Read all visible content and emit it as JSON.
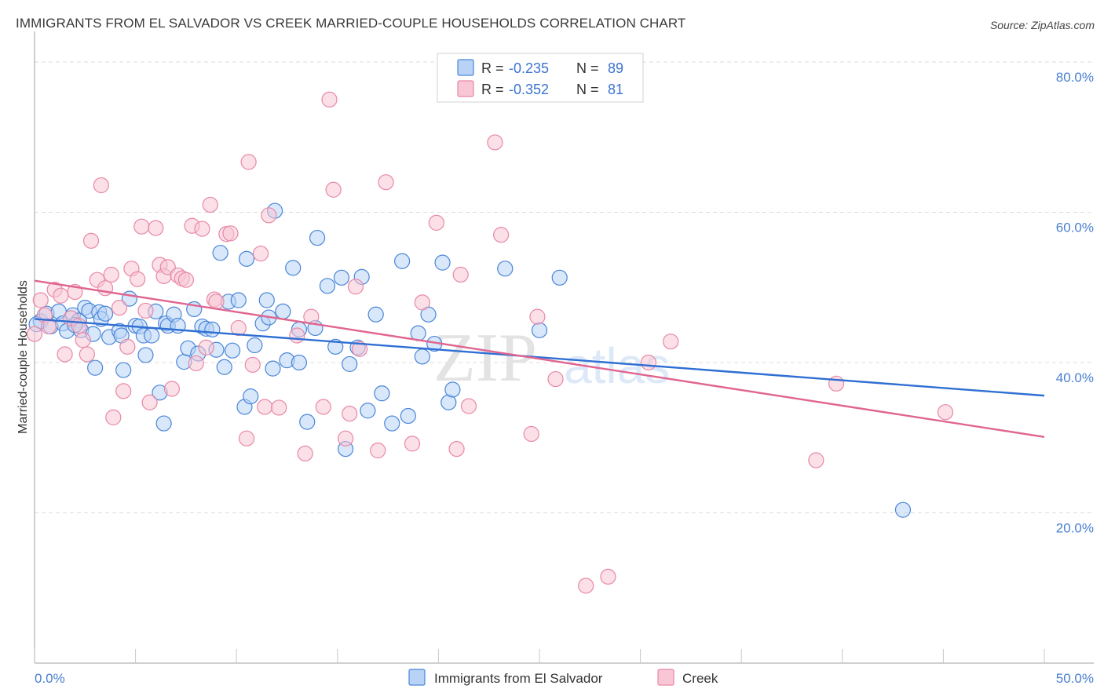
{
  "title": "IMMIGRANTS FROM EL SALVADOR VS CREEK MARRIED-COUPLE HOUSEHOLDS CORRELATION CHART",
  "source": "Source: ZipAtlas.com",
  "watermark": {
    "zip": "ZIP",
    "atlas": "atlas"
  },
  "colors": {
    "blue_fill": "#b8d3f5",
    "blue_stroke": "#4a86d8",
    "blue_line": "#2f6fd3",
    "pink_fill": "#f8c6d5",
    "pink_stroke": "#e888a6",
    "pink_line": "#e06590",
    "axis_label": "#4a7fd0",
    "grid": "#dcdcdc"
  },
  "legend": {
    "rows": [
      {
        "r_label": "R =",
        "r_value": "-0.235",
        "n_label": "N =",
        "n_value": "89"
      },
      {
        "r_label": "R =",
        "r_value": "-0.352",
        "n_label": "N =",
        "n_value": "81"
      }
    ]
  },
  "chart_data": {
    "type": "scatter",
    "title": "IMMIGRANTS FROM EL SALVADOR VS CREEK MARRIED-COUPLE HOUSEHOLDS CORRELATION CHART",
    "xlabel": "",
    "ylabel": "Married-couple Households",
    "xlim": [
      0,
      50
    ],
    "ylim": [
      0,
      80
    ],
    "x_tick_labels": [
      "0.0%",
      "50.0%"
    ],
    "y_ticks": [
      20,
      40,
      60,
      80
    ],
    "y_tick_labels": [
      "20.0%",
      "40.0%",
      "60.0%",
      "80.0%"
    ],
    "grid": true,
    "legend_position": "top-center",
    "series": [
      {
        "name": "Immigrants from El Salvador",
        "R": -0.235,
        "N": 89,
        "trend": {
          "x": [
            0,
            50
          ],
          "y": [
            45.8,
            35.6
          ]
        },
        "points": [
          [
            0.3,
            45.5
          ],
          [
            0.6,
            46.5
          ],
          [
            0.8,
            44.8
          ],
          [
            1.2,
            46.8
          ],
          [
            1.4,
            45.2
          ],
          [
            1.6,
            44.2
          ],
          [
            1.9,
            46.3
          ],
          [
            2.2,
            45.6
          ],
          [
            2.3,
            44.3
          ],
          [
            2.5,
            47.3
          ],
          [
            2.7,
            46.9
          ],
          [
            2.9,
            43.8
          ],
          [
            3.0,
            39.3
          ],
          [
            3.2,
            46.7
          ],
          [
            3.3,
            45.8
          ],
          [
            3.5,
            46.5
          ],
          [
            3.7,
            43.4
          ],
          [
            4.2,
            44.2
          ],
          [
            4.3,
            43.6
          ],
          [
            4.4,
            39.0
          ],
          [
            4.7,
            48.5
          ],
          [
            5.0,
            44.9
          ],
          [
            5.2,
            44.8
          ],
          [
            5.4,
            43.6
          ],
          [
            5.5,
            41.0
          ],
          [
            5.8,
            43.6
          ],
          [
            6.0,
            46.8
          ],
          [
            6.2,
            36.0
          ],
          [
            6.4,
            31.9
          ],
          [
            6.5,
            45.2
          ],
          [
            6.6,
            44.9
          ],
          [
            6.9,
            46.4
          ],
          [
            7.1,
            44.9
          ],
          [
            7.4,
            40.1
          ],
          [
            7.6,
            41.9
          ],
          [
            7.9,
            47.1
          ],
          [
            8.1,
            41.2
          ],
          [
            8.3,
            44.8
          ],
          [
            8.5,
            44.5
          ],
          [
            8.8,
            44.4
          ],
          [
            9.0,
            41.7
          ],
          [
            9.2,
            54.6
          ],
          [
            9.4,
            39.4
          ],
          [
            9.6,
            48.1
          ],
          [
            9.8,
            41.6
          ],
          [
            10.1,
            48.3
          ],
          [
            10.4,
            34.1
          ],
          [
            10.5,
            53.8
          ],
          [
            10.7,
            35.5
          ],
          [
            10.9,
            42.3
          ],
          [
            11.3,
            45.2
          ],
          [
            11.5,
            48.3
          ],
          [
            11.6,
            46.0
          ],
          [
            11.9,
            60.2
          ],
          [
            11.8,
            39.2
          ],
          [
            12.3,
            46.8
          ],
          [
            12.5,
            40.3
          ],
          [
            12.8,
            52.6
          ],
          [
            13.1,
            44.4
          ],
          [
            13.1,
            40.0
          ],
          [
            13.5,
            32.1
          ],
          [
            13.9,
            44.6
          ],
          [
            14.0,
            56.6
          ],
          [
            14.5,
            50.2
          ],
          [
            14.9,
            42.1
          ],
          [
            15.2,
            51.3
          ],
          [
            15.4,
            28.5
          ],
          [
            15.6,
            39.8
          ],
          [
            16.0,
            42.0
          ],
          [
            16.2,
            51.4
          ],
          [
            16.5,
            33.6
          ],
          [
            16.9,
            46.4
          ],
          [
            17.2,
            35.9
          ],
          [
            17.7,
            31.9
          ],
          [
            18.2,
            53.5
          ],
          [
            18.5,
            32.9
          ],
          [
            19.0,
            43.9
          ],
          [
            19.2,
            40.8
          ],
          [
            19.5,
            46.4
          ],
          [
            19.8,
            42.5
          ],
          [
            20.2,
            53.3
          ],
          [
            20.5,
            34.7
          ],
          [
            20.7,
            36.4
          ],
          [
            23.3,
            52.5
          ],
          [
            25.0,
            44.3
          ],
          [
            26.0,
            51.3
          ],
          [
            43.0,
            20.4
          ],
          [
            0.1,
            45.1
          ],
          [
            2.0,
            45.0
          ]
        ]
      },
      {
        "name": "Creek",
        "R": -0.352,
        "N": 81,
        "trend": {
          "x": [
            0,
            50
          ],
          "y": [
            50.9,
            30.1
          ]
        },
        "points": [
          [
            0.0,
            43.8
          ],
          [
            0.3,
            48.3
          ],
          [
            0.5,
            46.3
          ],
          [
            0.7,
            44.8
          ],
          [
            1.0,
            49.7
          ],
          [
            1.3,
            48.9
          ],
          [
            1.5,
            41.1
          ],
          [
            1.8,
            45.9
          ],
          [
            2.0,
            49.4
          ],
          [
            2.2,
            44.9
          ],
          [
            2.4,
            43.0
          ],
          [
            2.6,
            41.1
          ],
          [
            2.8,
            56.2
          ],
          [
            3.1,
            51.0
          ],
          [
            3.3,
            63.6
          ],
          [
            3.5,
            49.9
          ],
          [
            3.8,
            51.7
          ],
          [
            3.9,
            32.7
          ],
          [
            4.2,
            47.3
          ],
          [
            4.4,
            36.2
          ],
          [
            4.6,
            42.1
          ],
          [
            4.8,
            52.5
          ],
          [
            5.1,
            51.1
          ],
          [
            5.3,
            58.1
          ],
          [
            5.5,
            46.9
          ],
          [
            5.7,
            34.7
          ],
          [
            6.0,
            57.9
          ],
          [
            6.2,
            53.0
          ],
          [
            6.4,
            51.5
          ],
          [
            6.6,
            52.7
          ],
          [
            6.8,
            36.5
          ],
          [
            7.1,
            51.6
          ],
          [
            7.3,
            51.2
          ],
          [
            7.5,
            51.0
          ],
          [
            7.8,
            58.2
          ],
          [
            8.0,
            39.9
          ],
          [
            8.3,
            57.8
          ],
          [
            8.5,
            42.0
          ],
          [
            8.7,
            61.0
          ],
          [
            8.9,
            48.4
          ],
          [
            9.0,
            48.1
          ],
          [
            9.5,
            57.1
          ],
          [
            9.7,
            57.2
          ],
          [
            10.1,
            44.6
          ],
          [
            10.5,
            29.9
          ],
          [
            10.6,
            66.7
          ],
          [
            10.8,
            39.7
          ],
          [
            11.2,
            54.5
          ],
          [
            11.4,
            34.1
          ],
          [
            11.6,
            59.6
          ],
          [
            12.1,
            34.0
          ],
          [
            13.0,
            43.6
          ],
          [
            13.4,
            27.9
          ],
          [
            13.7,
            46.1
          ],
          [
            14.3,
            34.1
          ],
          [
            14.6,
            75.0
          ],
          [
            14.8,
            63.0
          ],
          [
            15.4,
            29.9
          ],
          [
            15.6,
            33.2
          ],
          [
            15.9,
            50.1
          ],
          [
            16.1,
            41.8
          ],
          [
            17.0,
            28.3
          ],
          [
            17.4,
            64.0
          ],
          [
            18.7,
            29.2
          ],
          [
            19.2,
            48.0
          ],
          [
            19.9,
            58.6
          ],
          [
            20.9,
            28.5
          ],
          [
            21.1,
            51.7
          ],
          [
            21.5,
            34.2
          ],
          [
            22.8,
            69.3
          ],
          [
            23.1,
            57.0
          ],
          [
            24.6,
            30.5
          ],
          [
            24.9,
            46.1
          ],
          [
            25.8,
            37.8
          ],
          [
            27.3,
            10.3
          ],
          [
            28.4,
            11.5
          ],
          [
            30.4,
            40.0
          ],
          [
            31.5,
            42.8
          ],
          [
            38.7,
            27.0
          ],
          [
            39.7,
            37.2
          ],
          [
            45.1,
            33.4
          ]
        ]
      }
    ]
  }
}
